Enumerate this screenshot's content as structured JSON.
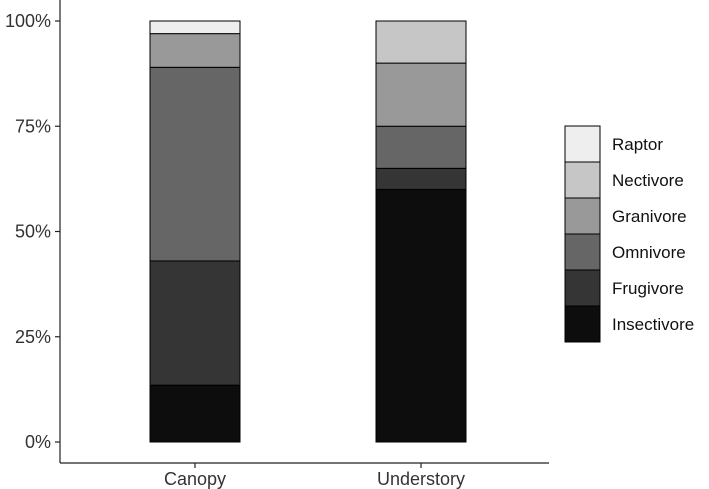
{
  "chart_data": {
    "type": "bar",
    "stacked": true,
    "categories": [
      "Canopy",
      "Understory"
    ],
    "series": [
      {
        "name": "Insectivore",
        "color": "#0d0d0d",
        "values": [
          13.5,
          60
        ]
      },
      {
        "name": "Frugivore",
        "color": "#353535",
        "values": [
          29.5,
          5
        ]
      },
      {
        "name": "Omnivore",
        "color": "#666666",
        "values": [
          46,
          10
        ]
      },
      {
        "name": "Granivore",
        "color": "#999999",
        "values": [
          8,
          15
        ]
      },
      {
        "name": "Nectivore",
        "color": "#c6c6c6",
        "values": [
          0,
          10
        ]
      },
      {
        "name": "Raptor",
        "color": "#eeeeee",
        "values": [
          3,
          0
        ]
      }
    ],
    "y_ticks": [
      "0%",
      "25%",
      "50%",
      "75%",
      "100%"
    ],
    "ylim": [
      0,
      100
    ],
    "grid": false,
    "legend_position": "right",
    "legend_order": [
      "Raptor",
      "Nectivore",
      "Granivore",
      "Omnivore",
      "Frugivore",
      "Insectivore"
    ]
  }
}
